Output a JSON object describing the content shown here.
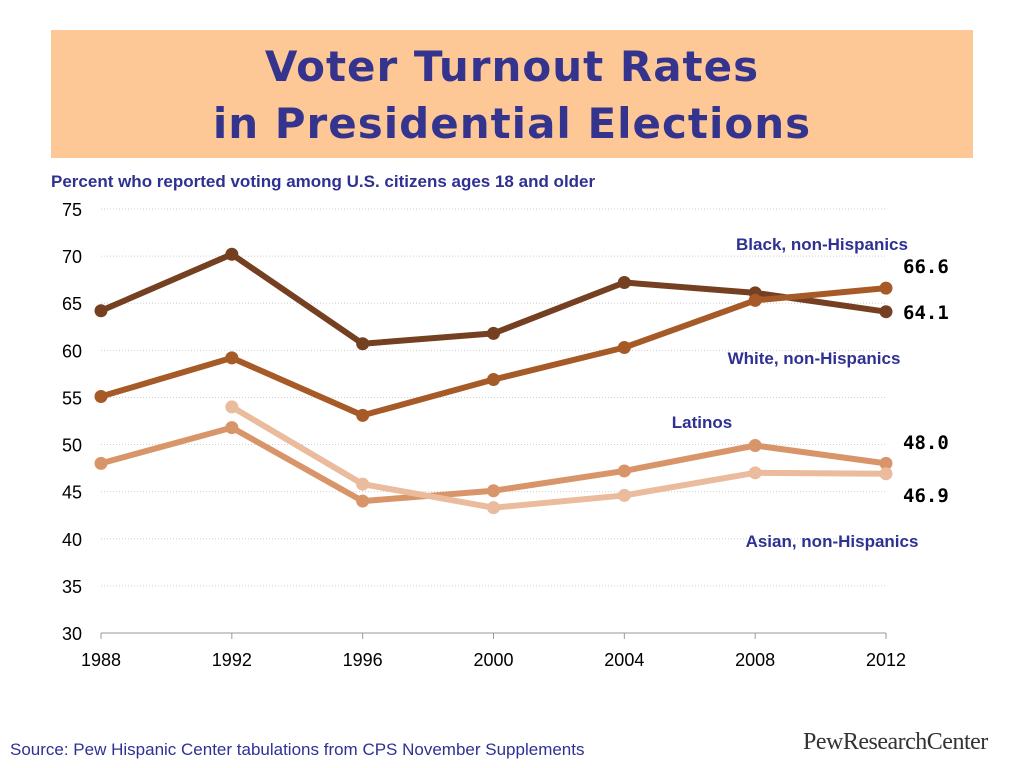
{
  "header": {
    "title_line1": "Voter Turnout Rates",
    "title_line2": "in Presidential Elections",
    "subtitle": "Percent who reported voting among U.S. citizens ages 18 and older"
  },
  "footer": {
    "source": "Source: Pew Hispanic Center tabulations from CPS November Supplements",
    "logo": "PewResearchCenter"
  },
  "chart_data": {
    "type": "line",
    "title": "Voter Turnout Rates in Presidential Elections",
    "subtitle": "Percent who reported voting among U.S. citizens ages 18 and older",
    "xlabel": "",
    "ylabel": "",
    "x": [
      1988,
      1992,
      1996,
      2000,
      2004,
      2008,
      2012
    ],
    "ylim": [
      30,
      75
    ],
    "yticks": [
      30,
      35,
      40,
      45,
      50,
      55,
      60,
      65,
      70,
      75
    ],
    "grid": "horizontal dotted",
    "series": [
      {
        "name": "Black, non-Hispanics",
        "color": "#754021",
        "values": [
          64.2,
          70.2,
          60.7,
          61.8,
          67.2,
          66.1,
          64.1
        ],
        "end_label": "64.1"
      },
      {
        "name": "White, non-Hispanics",
        "color": "#a65a27",
        "values": [
          55.1,
          59.2,
          53.1,
          56.9,
          60.3,
          65.3,
          66.6
        ],
        "end_label": "66.6"
      },
      {
        "name": "Latinos",
        "color": "#d9956a",
        "values": [
          48.0,
          51.8,
          44.0,
          45.1,
          47.2,
          49.9,
          48.0
        ],
        "end_label": "48.0"
      },
      {
        "name": "Asian, non-Hispanics",
        "color": "#eabb9d",
        "values": [
          null,
          54.0,
          45.8,
          43.3,
          44.6,
          47.0,
          46.9
        ],
        "end_label": "46.9"
      }
    ]
  }
}
